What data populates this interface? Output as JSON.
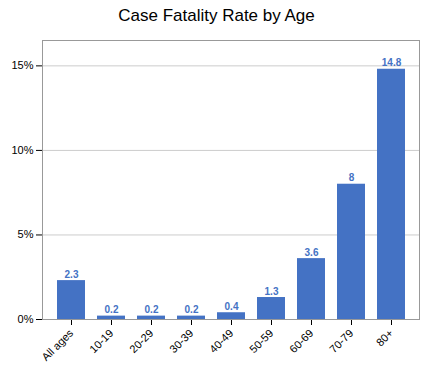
{
  "chart_data": {
    "type": "bar",
    "title": "Case Fatality Rate by Age",
    "categories": [
      "All ages",
      "10-19",
      "20-29",
      "30-39",
      "40-49",
      "50-59",
      "60-69",
      "70-79",
      "80+"
    ],
    "values": [
      2.3,
      0.2,
      0.2,
      0.2,
      0.4,
      1.3,
      3.6,
      8,
      14.8
    ],
    "color": "#4472C4",
    "ylim": [
      0,
      16.5
    ],
    "yticks": [
      {
        "value": 0,
        "label": "0%"
      },
      {
        "value": 5,
        "label": "5%"
      },
      {
        "value": 10,
        "label": "10%"
      },
      {
        "value": 15,
        "label": "15%"
      }
    ],
    "grid": true,
    "data_labels": true
  }
}
